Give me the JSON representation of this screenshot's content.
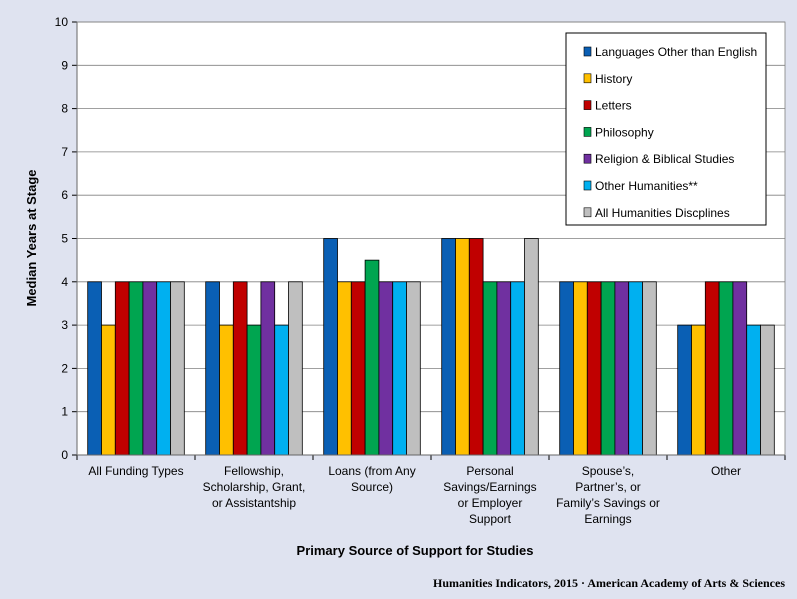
{
  "chart_data": {
    "type": "bar",
    "ylabel": "Median Years at Stage",
    "xlabel": "Primary Source of Support for Studies",
    "ylim": [
      0,
      10
    ],
    "yticks": [
      0,
      1,
      2,
      3,
      4,
      5,
      6,
      7,
      8,
      9,
      10
    ],
    "grid": true,
    "legend_position": "top-right",
    "categories": [
      [
        "All Funding Types"
      ],
      [
        "Fellowship,",
        "Scholarship, Grant,",
        "or Assistantship"
      ],
      [
        "Loans (from Any",
        "Source)"
      ],
      [
        "Personal",
        "Savings/Earnings",
        "or Employer",
        "Support"
      ],
      [
        "Spouse’s,",
        "Partner’s, or",
        "Family’s Savings  or",
        "Earnings"
      ],
      [
        "Other"
      ]
    ],
    "series": [
      {
        "name": "Languages Other than English",
        "color": "#0a5fb4",
        "values": [
          4,
          4,
          5,
          5,
          4,
          3
        ]
      },
      {
        "name": "History",
        "color": "#ffc000",
        "values": [
          3,
          3,
          4,
          5,
          4,
          3
        ]
      },
      {
        "name": "Letters",
        "color": "#c00000",
        "values": [
          4,
          4,
          4,
          5,
          4,
          4
        ]
      },
      {
        "name": "Philosophy",
        "color": "#00a550",
        "values": [
          4,
          3,
          4.5,
          4,
          4,
          4
        ]
      },
      {
        "name": "Religion & Biblical Studies",
        "color": "#7030a0",
        "values": [
          4,
          4,
          4,
          4,
          4,
          4
        ]
      },
      {
        "name": "Other Humanities**",
        "color": "#00b0f0",
        "values": [
          4,
          3,
          4,
          4,
          4,
          3
        ]
      },
      {
        "name": "All Humanities Discplines",
        "color": "#bfbfbf",
        "values": [
          4,
          4,
          4,
          5,
          4,
          3
        ]
      }
    ]
  },
  "credit": "Humanities Indicators, 2015 · American Academy of Arts & Sciences"
}
